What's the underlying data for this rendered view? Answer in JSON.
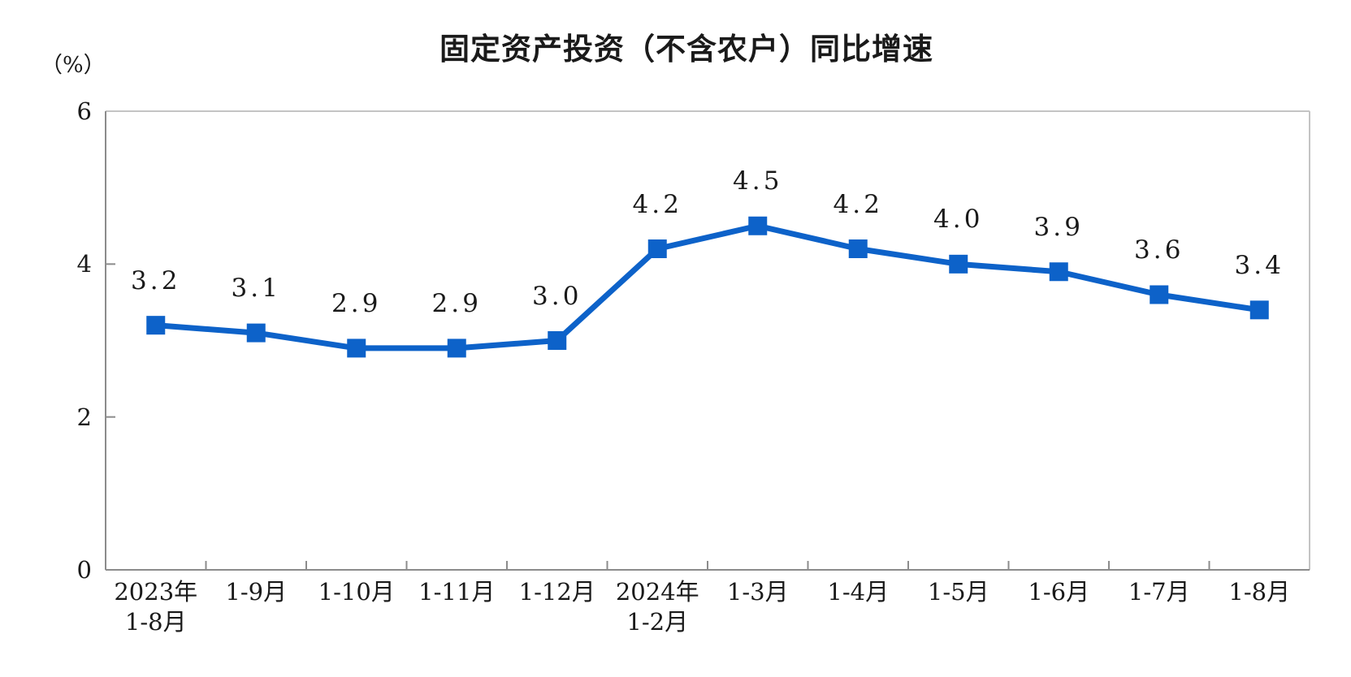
{
  "page": {
    "background": "#ffffff"
  },
  "chart_data": {
    "type": "line",
    "title": "固定资产投资（不含农户）同比增速",
    "unit_label": "（%）",
    "categories": [
      [
        "2023年",
        "1-8月"
      ],
      [
        "1-9月"
      ],
      [
        "1-10月"
      ],
      [
        "1-11月"
      ],
      [
        "1-12月"
      ],
      [
        "2024年",
        "1-2月"
      ],
      [
        "1-3月"
      ],
      [
        "1-4月"
      ],
      [
        "1-5月"
      ],
      [
        "1-6月"
      ],
      [
        "1-7月"
      ],
      [
        "1-8月"
      ]
    ],
    "values": [
      3.2,
      3.1,
      2.9,
      2.9,
      3.0,
      4.2,
      4.5,
      4.2,
      4.0,
      3.9,
      3.6,
      3.4
    ],
    "point_labels": [
      "3.2",
      "3.1",
      "2.9",
      "2.9",
      "3.0",
      "4.2",
      "4.5",
      "4.2",
      "4.0",
      "3.9",
      "3.6",
      "3.4"
    ],
    "xlabel": "",
    "ylabel": "（%）",
    "ylim": [
      0,
      6
    ],
    "yticks": [
      0,
      2,
      4,
      6
    ],
    "grid": false,
    "legend": "none",
    "marker": "square",
    "colors": {
      "line": "#0d62c9",
      "axis": "#8c8c8c",
      "frame_light": "#c4c4c4",
      "text": "#1a1a1a"
    }
  }
}
